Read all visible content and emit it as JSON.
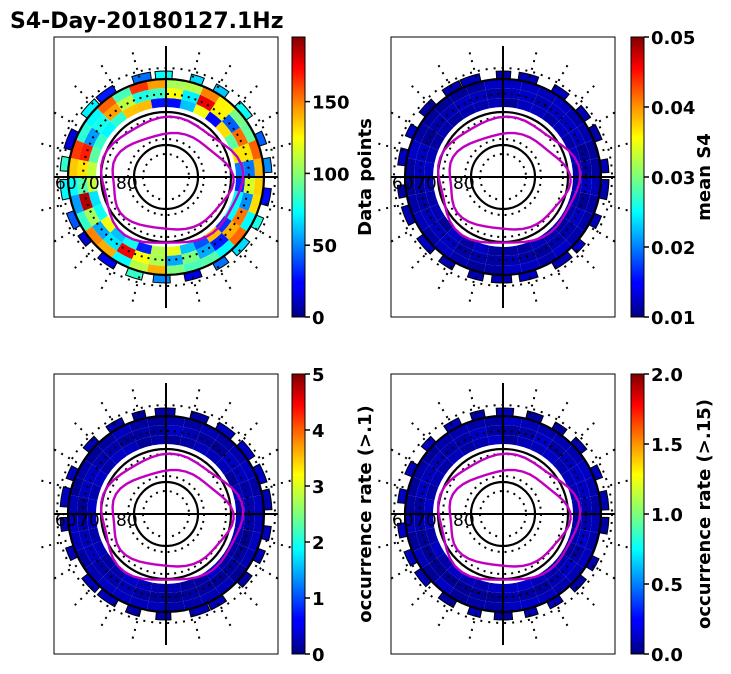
{
  "title": "S4-Day-20180127.1Hz",
  "chart_data": [
    {
      "type": "heatmap",
      "projection": "polar",
      "grid": true,
      "lat_labels": [
        "60",
        "70",
        "80"
      ],
      "contour_color": "#c000c0",
      "colorbar": {
        "label": "Data points",
        "range": [
          0,
          195
        ],
        "ticks": [
          0,
          50,
          100,
          150
        ],
        "tick_labels": [
          "0",
          "50",
          "100",
          "150"
        ],
        "cmap": "jet"
      },
      "field_level": "varied"
    },
    {
      "type": "heatmap",
      "projection": "polar",
      "grid": true,
      "lat_labels": [
        "60",
        "70",
        "80"
      ],
      "contour_color": "#c000c0",
      "colorbar": {
        "label": "mean S4",
        "range": [
          0.01,
          0.05
        ],
        "ticks": [
          0.01,
          0.02,
          0.03,
          0.04,
          0.05
        ],
        "tick_labels": [
          "0.01",
          "0.02",
          "0.03",
          "0.04",
          "0.05"
        ],
        "cmap": "jet"
      },
      "field_level": "low"
    },
    {
      "type": "heatmap",
      "projection": "polar",
      "grid": true,
      "lat_labels": [
        "60",
        "70",
        "80"
      ],
      "contour_color": "#c000c0",
      "colorbar": {
        "label": "occurrence rate (>.1)",
        "range": [
          0,
          5
        ],
        "ticks": [
          0,
          1,
          2,
          3,
          4,
          5
        ],
        "tick_labels": [
          "0",
          "1",
          "2",
          "3",
          "4",
          "5"
        ],
        "cmap": "jet"
      },
      "field_level": "low"
    },
    {
      "type": "heatmap",
      "projection": "polar",
      "grid": true,
      "lat_labels": [
        "60",
        "70",
        "80"
      ],
      "contour_color": "#c000c0",
      "colorbar": {
        "label": "occurrence rate (>.15)",
        "range": [
          0.0,
          2.0
        ],
        "ticks": [
          0.0,
          0.5,
          1.0,
          1.5,
          2.0
        ],
        "tick_labels": [
          "0.0",
          "0.5",
          "1.0",
          "1.5",
          "2.0"
        ],
        "cmap": "jet"
      },
      "field_level": "low"
    }
  ]
}
